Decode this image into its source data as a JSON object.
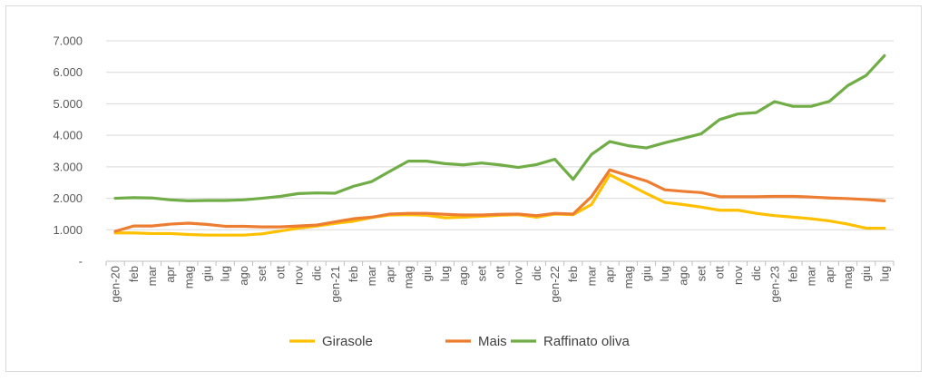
{
  "chart_data": {
    "type": "line",
    "title": "",
    "xlabel": "",
    "ylabel": "",
    "ylim": [
      0,
      7000
    ],
    "y_ticks": [
      0,
      1000,
      2000,
      3000,
      4000,
      5000,
      6000,
      7000
    ],
    "y_tick_labels": [
      "-",
      "1.000",
      "2.000",
      "3.000",
      "4.000",
      "5.000",
      "6.000",
      "7.000"
    ],
    "grid": "horizontal",
    "legend_position": "bottom",
    "categories": [
      "gen-20",
      "feb",
      "mar",
      "apr",
      "mag",
      "giu",
      "lug",
      "ago",
      "set",
      "ott",
      "nov",
      "dic",
      "gen-21",
      "feb",
      "mar",
      "apr",
      "mag",
      "giu",
      "lug",
      "ago",
      "set",
      "ott",
      "nov",
      "dic",
      "gen-22",
      "feb",
      "mar",
      "apr",
      "mag",
      "giu",
      "lug",
      "ago",
      "set",
      "ott",
      "nov",
      "dic",
      "gen-23",
      "feb",
      "mar",
      "apr",
      "mag",
      "giu",
      "lug"
    ],
    "series": [
      {
        "name": "Girasole",
        "color": "#ffc000",
        "values": [
          900,
          900,
          880,
          880,
          850,
          830,
          830,
          830,
          870,
          960,
          1050,
          1120,
          1200,
          1270,
          1390,
          1470,
          1480,
          1460,
          1380,
          1400,
          1430,
          1460,
          1480,
          1400,
          1500,
          1480,
          1800,
          2750,
          2450,
          2150,
          1870,
          1800,
          1720,
          1620,
          1620,
          1520,
          1450,
          1400,
          1350,
          1280,
          1180,
          1050,
          1050
        ]
      },
      {
        "name": "Mais",
        "color": "#ed7d31",
        "values": [
          950,
          1120,
          1120,
          1180,
          1210,
          1170,
          1110,
          1110,
          1090,
          1090,
          1120,
          1150,
          1250,
          1350,
          1400,
          1500,
          1520,
          1520,
          1490,
          1470,
          1470,
          1490,
          1500,
          1450,
          1520,
          1500,
          2050,
          2900,
          2720,
          2550,
          2270,
          2220,
          2180,
          2050,
          2050,
          2050,
          2060,
          2060,
          2040,
          2010,
          1990,
          1960,
          1920
        ]
      },
      {
        "name": "Raffinato oliva",
        "color": "#70ad47",
        "values": [
          2000,
          2020,
          2010,
          1950,
          1920,
          1930,
          1930,
          1950,
          2000,
          2060,
          2150,
          2170,
          2160,
          2380,
          2530,
          2860,
          3180,
          3180,
          3100,
          3060,
          3120,
          3060,
          2980,
          3070,
          3240,
          2600,
          3390,
          3800,
          3670,
          3600,
          3760,
          3900,
          4050,
          4500,
          4680,
          4720,
          5070,
          4920,
          4920,
          5080,
          5580,
          5900,
          6530
        ]
      }
    ]
  }
}
